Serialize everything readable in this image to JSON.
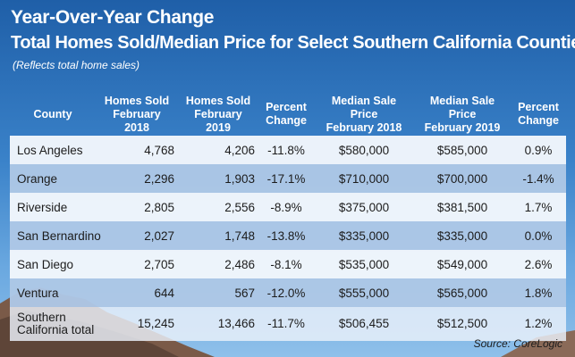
{
  "header": {
    "title": "Year-Over-Year Change",
    "subtitle": "Total Homes Sold/Median Price for Select Southern California Counties",
    "note": "(Reflects total home sales)"
  },
  "table": {
    "headers": [
      [
        "County",
        ""
      ],
      [
        "Homes Sold",
        "February 2018"
      ],
      [
        "Homes Sold",
        "February 2019"
      ],
      [
        "Percent",
        "Change"
      ],
      [
        "Median Sale Price",
        "February 2018"
      ],
      [
        "Median Sale Price",
        "February 2019"
      ],
      [
        "Percent",
        "Change"
      ]
    ],
    "rows": [
      [
        "Los Angeles",
        "4,768",
        "4,206",
        "-11.8%",
        "$580,000",
        "$585,000",
        "0.9%"
      ],
      [
        "Orange",
        "2,296",
        "1,903",
        "-17.1%",
        "$710,000",
        "$700,000",
        "-1.4%"
      ],
      [
        "Riverside",
        "2,805",
        "2,556",
        "-8.9%",
        "$375,000",
        "$381,500",
        "1.7%"
      ],
      [
        "San Bernardino",
        "2,027",
        "1,748",
        "-13.8%",
        "$335,000",
        "$335,000",
        "0.0%"
      ],
      [
        "San Diego",
        "2,705",
        "2,486",
        "-8.1%",
        "$535,000",
        "$549,000",
        "2.6%"
      ],
      [
        "Ventura",
        "644",
        "567",
        "-12.0%",
        "$555,000",
        "$565,000",
        "1.8%"
      ]
    ],
    "total": {
      "county_line1": "Southern",
      "county_line2": "California total",
      "values": [
        "15,245",
        "13,466",
        "-11.7%",
        "$506,455",
        "$512,500",
        "1.2%"
      ]
    }
  },
  "source": "Source: CoreLogic",
  "colors": {
    "sky_top": "#1f5fa8",
    "sky_bottom": "#8fc0ea",
    "row_light": "#f2f7fc",
    "row_blue": "#aec8e6",
    "title_text": "#ffffff"
  }
}
